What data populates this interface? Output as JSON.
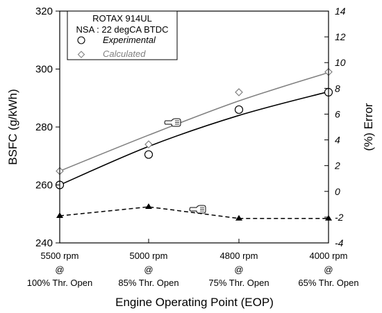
{
  "chart_data": {
    "type": "line",
    "xlabel": "Engine Operating Point (EOP)",
    "ylabel_left": "BSFC (g/kWh)",
    "ylabel_right": "(%) Error",
    "ylim_left": [
      240,
      320
    ],
    "yticks_left": [
      240,
      260,
      280,
      300,
      320
    ],
    "ylim_right": [
      -4,
      14
    ],
    "yticks_right": [
      -4,
      -2,
      0,
      2,
      4,
      6,
      8,
      10,
      12,
      14
    ],
    "categories": [
      {
        "line1": "5500 rpm",
        "line2": "@",
        "line3": "100% Thr. Open"
      },
      {
        "line1": "5000 rpm",
        "line2": "@",
        "line3": "85% Thr. Open"
      },
      {
        "line1": "4800 rpm",
        "line2": "@",
        "line3": "75% Thr. Open"
      },
      {
        "line1": "4000 rpm",
        "line2": "@",
        "line3": "65% Thr. Open"
      }
    ],
    "legend": {
      "title_line1": "ROTAX 914UL",
      "title_line2": "NSA : 22 degCA BTDC",
      "placement": "top-left"
    },
    "series": [
      {
        "name": "Experimental",
        "axis": "left",
        "marker": "circle",
        "color": "#000000",
        "values": [
          260.0,
          270.5,
          286.0,
          292.0
        ]
      },
      {
        "name": "Calculated",
        "axis": "left",
        "marker": "diamond",
        "color": "#808080",
        "values": [
          264.8,
          274.0,
          292.0,
          299.0
        ]
      },
      {
        "name": "",
        "axis": "right",
        "marker": "triangle",
        "color": "#000000",
        "dashed": true,
        "values": [
          -1.9,
          -1.2,
          -2.1,
          -2.1
        ]
      }
    ],
    "fits": [
      {
        "of": "Experimental",
        "color": "#000000",
        "values": [
          260.0,
          273.3,
          284.0,
          292.2
        ]
      },
      {
        "of": "Calculated",
        "color": "#808080",
        "values": [
          264.8,
          277.2,
          289.0,
          298.8
        ]
      }
    ],
    "pointer_icons": [
      "pointing-hand-icon",
      "pointing-hand-icon"
    ]
  }
}
